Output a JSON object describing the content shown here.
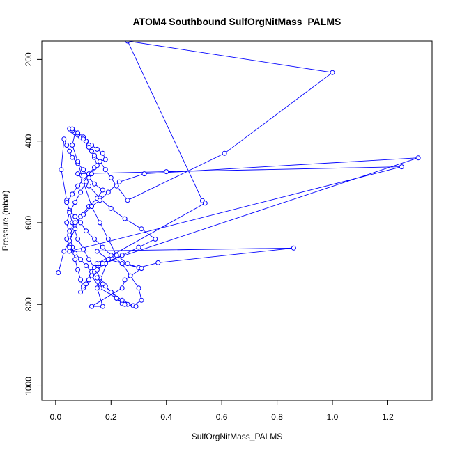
{
  "chart_data": {
    "type": "line",
    "title": "ATOM4 Southbound SulfOrgNitMass_PALMS",
    "xlabel": "SulfOrgNitMass_PALMS",
    "ylabel": "Pressure (mbar)",
    "xlim": [
      -0.05,
      1.36
    ],
    "ylim": [
      1035,
      155
    ],
    "y_reversed": true,
    "x_ticks": [
      "0.0",
      "0.2",
      "0.4",
      "0.6",
      "0.8",
      "1.0",
      "1.2"
    ],
    "x_tick_values": [
      0.0,
      0.2,
      0.4,
      0.6,
      0.8,
      1.0,
      1.2
    ],
    "y_ticks": [
      "200",
      "400",
      "600",
      "800",
      "1000"
    ],
    "y_tick_values": [
      200,
      400,
      600,
      800,
      1000
    ],
    "grid": false,
    "series_color": "#0000ff",
    "series": [
      {
        "x": [
          0.01,
          0.03,
          0.05,
          0.07,
          0.09,
          0.12,
          0.15,
          0.17,
          0.14,
          0.12,
          0.1,
          0.08,
          0.06,
          0.05,
          0.04,
          0.03,
          0.02,
          0.04,
          0.06,
          0.08,
          0.1,
          0.12,
          0.14,
          0.16,
          0.18,
          0.2,
          0.22,
          0.24,
          0.26,
          0.28,
          0.31,
          0.3,
          0.27,
          0.24,
          0.2,
          0.17,
          0.14,
          0.11,
          0.09,
          0.07,
          0.05,
          0.04,
          0.06,
          0.08,
          0.1,
          0.12,
          0.14,
          0.16,
          0.18,
          0.17,
          0.15,
          0.13,
          0.11,
          0.09,
          0.07,
          0.06,
          0.08,
          0.1,
          0.13,
          0.16,
          0.19,
          0.22,
          0.26,
          0.3,
          0.37,
          0.86,
          0.05,
          1.25,
          0.4,
          0.08,
          0.12,
          0.16,
          0.2,
          0.25,
          0.31,
          0.36,
          0.3,
          0.24,
          0.18,
          0.14,
          0.12,
          0.1,
          0.09,
          0.08,
          0.07,
          0.06,
          0.05,
          0.04,
          0.05,
          0.07,
          0.09,
          0.11,
          0.13,
          0.15,
          0.14,
          0.13,
          0.12,
          0.11,
          0.1,
          0.08,
          0.07,
          0.06,
          0.05,
          0.06,
          0.08,
          0.1,
          0.12,
          0.14,
          0.16,
          0.18,
          0.2,
          0.22,
          0.26,
          0.61,
          1.0,
          0.26,
          0.53,
          0.54,
          0.15,
          0.13,
          0.16,
          0.22,
          0.25,
          0.29,
          0.24,
          0.2,
          0.17,
          0.15,
          0.13,
          0.11,
          0.09,
          0.07,
          0.05,
          0.04,
          0.05,
          0.07,
          0.1,
          0.13,
          0.16,
          0.19,
          0.23,
          0.32,
          1.31,
          0.16,
          0.14,
          0.12,
          0.1,
          0.09,
          0.11,
          0.13,
          0.15,
          0.17,
          0.19,
          0.15,
          0.17,
          0.13,
          0.24,
          0.25,
          0.31,
          0.19,
          0.15
        ],
        "y": [
          722,
          670,
          645,
          615,
          585,
          560,
          540,
          520,
          505,
          490,
          470,
          455,
          440,
          425,
          410,
          395,
          470,
          545,
          600,
          640,
          665,
          690,
          710,
          735,
          755,
          770,
          785,
          798,
          800,
          803,
          790,
          760,
          730,
          700,
          680,
          660,
          640,
          620,
          600,
          585,
          570,
          550,
          530,
          510,
          495,
          480,
          465,
          450,
          445,
          430,
          420,
          410,
          400,
          390,
          380,
          410,
          450,
          500,
          560,
          600,
          640,
          680,
          700,
          710,
          698,
          662,
          670,
          463,
          475,
          480,
          510,
          540,
          565,
          590,
          615,
          640,
          660,
          680,
          700,
          720,
          740,
          760,
          740,
          715,
          690,
          660,
          630,
          600,
          575,
          550,
          525,
          500,
          480,
          460,
          440,
          425,
          410,
          400,
          390,
          385,
          380,
          375,
          370,
          370,
          380,
          395,
          415,
          435,
          450,
          470,
          490,
          510,
          545,
          430,
          232,
          155,
          546,
          552,
          700,
          730,
          760,
          785,
          800,
          805,
          790,
          770,
          750,
          735,
          720,
          705,
          690,
          675,
          660,
          640,
          620,
          600,
          580,
          560,
          545,
          525,
          500,
          480,
          441,
          700,
          720,
          740,
          755,
          770,
          750,
          730,
          715,
          700,
          690,
          760,
          805,
          805,
          760,
          740,
          712,
          690,
          670
        ]
      }
    ]
  }
}
